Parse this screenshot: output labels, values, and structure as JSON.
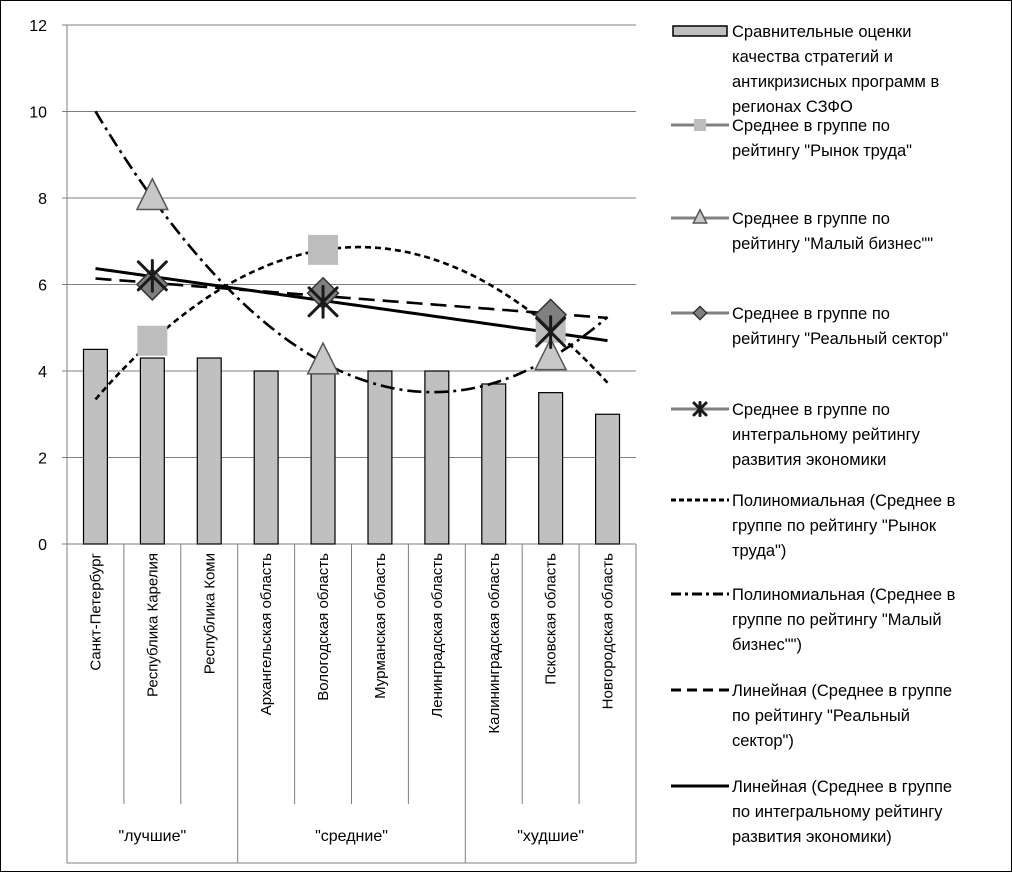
{
  "chart_data": {
    "type": "bar",
    "title": "",
    "xlabel": "",
    "ylabel": "",
    "ylim": [
      0,
      12
    ],
    "y_ticks": [
      "0",
      "2",
      "4",
      "6",
      "8",
      "10",
      "12"
    ],
    "grid": "horizontal",
    "legend_position": "right",
    "categories": [
      "Санкт-Петербург",
      "Республика Карелия",
      "Республика Коми",
      "Архангельская область",
      "Вологодская область",
      "Мурманская область",
      "Ленинградская область",
      "Калининградская область",
      "Псковская область",
      "Новгородская область"
    ],
    "groups": [
      {
        "label": "\"лучшие\"",
        "start": 0,
        "end": 2
      },
      {
        "label": "\"средние\"",
        "start": 3,
        "end": 6
      },
      {
        "label": "\"худшие\"",
        "start": 7,
        "end": 9
      }
    ],
    "series": [
      {
        "name": "Сравнительные оценки качества стратегий и антикризисных программ в регионах СЗФО",
        "kind": "bar",
        "values": [
          4.5,
          4.3,
          4.3,
          4.0,
          4.0,
          4.0,
          4.0,
          3.7,
          3.5,
          3.0
        ]
      },
      {
        "name": "Среднее в группе по рейтингу \"Рынок труда\"",
        "kind": "marker-square",
        "points": [
          [
            1,
            4.7
          ],
          [
            4,
            6.8
          ],
          [
            8,
            5.0
          ]
        ]
      },
      {
        "name": "Среднее в группе по рейтингу \"Малый бизнес\"\"",
        "kind": "marker-triangle",
        "points": [
          [
            1,
            8.0
          ],
          [
            4,
            4.2
          ],
          [
            8,
            4.3
          ]
        ]
      },
      {
        "name": "Среднее в группе по рейтингу \"Реальный сектор\"",
        "kind": "marker-diamond",
        "points": [
          [
            1,
            6.0
          ],
          [
            4,
            5.8
          ],
          [
            8,
            5.3
          ]
        ]
      },
      {
        "name": "Среднее в группе по интегральному рейтингу развития экономики",
        "kind": "marker-star",
        "points": [
          [
            1,
            6.2
          ],
          [
            4,
            5.6
          ],
          [
            8,
            4.9
          ]
        ]
      },
      {
        "name": "Полиномиальная (Среднее в группе по рейтингу \"Рынок труда\")",
        "kind": "trend-poly",
        "dash": "short",
        "fit_of": 1
      },
      {
        "name": "Полиномиальная (Среднее в группе по рейтингу \"Малый бизнес\"\")",
        "kind": "trend-poly",
        "dash": "dashdot",
        "fit_of": 2
      },
      {
        "name": "Линейная (Среднее в группе по рейтингу \"Реальный сектор\")",
        "kind": "trend-linear",
        "dash": "long",
        "fit_of": 3
      },
      {
        "name": "Линейная (Среднее в группе по интегральному рейтингу развития экономики)",
        "kind": "trend-linear",
        "dash": "solid",
        "fit_of": 4
      }
    ]
  },
  "colors": {
    "bar_fill": "#c0c0c0",
    "bar_stroke": "#000000",
    "square_marker": "#bdbdbd",
    "triangle_marker": "#c8c8c8",
    "diamond_marker": "#808080",
    "star_marker": "#1a1a1a",
    "gridline": "#7f7f7f",
    "trend": "#000000"
  }
}
